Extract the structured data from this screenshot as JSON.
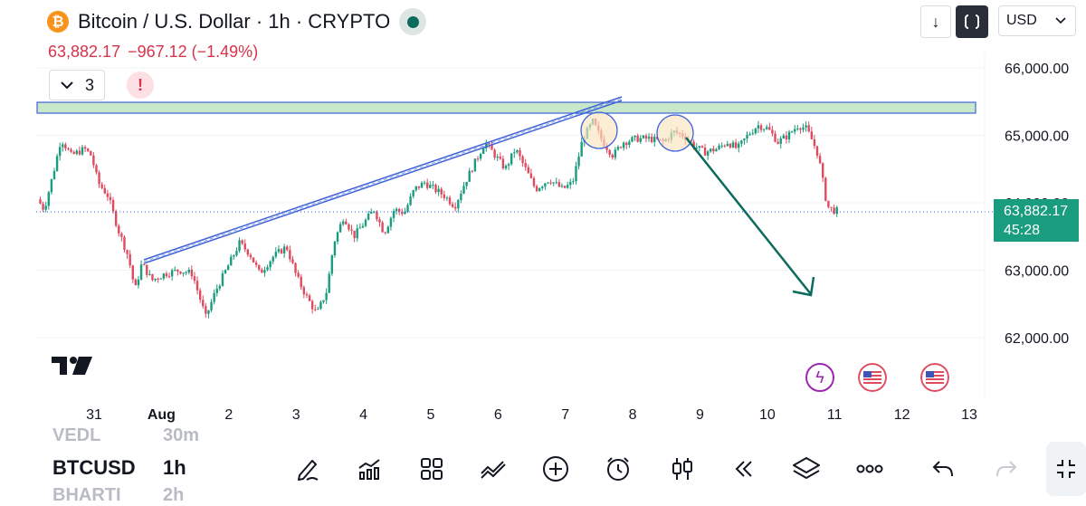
{
  "header": {
    "title": "Bitcoin / U.S. Dollar · 1h · CRYPTO",
    "last_price": "63,882.17",
    "change": "−967.12 (−1.49%)",
    "indicator_count": "3",
    "alert_glyph": "!",
    "currency": "USD",
    "logo_letter": "₿",
    "download_glyph": "↓"
  },
  "price_tag": {
    "price": "63,882.17",
    "countdown": "45:28"
  },
  "toolbar": {
    "symbol_above": "VEDL",
    "interval_above": "30m",
    "symbol": "BTCUSD",
    "interval": "1h",
    "symbol_below": "BHARTI",
    "interval_below": "2h",
    "tools": [
      "pencil-icon",
      "indicators-icon",
      "layout-grid-icon",
      "chart-style-icon",
      "plus-icon",
      "alarm-icon",
      "candles-icon",
      "replay-icon",
      "layers-icon",
      "more-icon",
      "undo-icon",
      "redo-icon"
    ]
  },
  "colors": {
    "up": "#1a9c7e",
    "down": "#e04a5f",
    "resistance_fill": "#c9e7c9",
    "trendline": "#3f63d9",
    "arrow": "#0b6b5d",
    "price_tag_bg": "#1a9c7e"
  },
  "chart_data": {
    "type": "candlestick",
    "symbol": "BTCUSD",
    "interval": "1h",
    "y_ticks": [
      {
        "value": 66000,
        "label": "66,000.00"
      },
      {
        "value": 65000,
        "label": "65,000.00"
      },
      {
        "value": 64000,
        "label": "64,000.00"
      },
      {
        "value": 63000,
        "label": "63,000.00"
      },
      {
        "value": 62000,
        "label": "62,000.00"
      }
    ],
    "x_ticks": [
      {
        "day": 31,
        "label": "31"
      },
      {
        "day": 32,
        "label": "Aug"
      },
      {
        "day": 33,
        "label": "2"
      },
      {
        "day": 34,
        "label": "3"
      },
      {
        "day": 35,
        "label": "4"
      },
      {
        "day": 36,
        "label": "5"
      },
      {
        "day": 37,
        "label": "6"
      },
      {
        "day": 38,
        "label": "7"
      },
      {
        "day": 39,
        "label": "8"
      },
      {
        "day": 40,
        "label": "9"
      },
      {
        "day": 41,
        "label": "10"
      },
      {
        "day": 42,
        "label": "11"
      },
      {
        "day": 43,
        "label": "12"
      },
      {
        "day": 44,
        "label": "13"
      }
    ],
    "ylim": [
      61600,
      66200
    ],
    "xlim": [
      30.2,
      44.1
    ],
    "last_price": 63882.17,
    "price_path": [
      [
        30.2,
        64050
      ],
      [
        30.3,
        63900
      ],
      [
        30.45,
        64500
      ],
      [
        30.55,
        64950
      ],
      [
        30.7,
        64700
      ],
      [
        30.9,
        64800
      ],
      [
        31.0,
        64700
      ],
      [
        31.1,
        64300
      ],
      [
        31.25,
        64100
      ],
      [
        31.4,
        63600
      ],
      [
        31.55,
        63200
      ],
      [
        31.65,
        62700
      ],
      [
        31.75,
        63100
      ],
      [
        31.9,
        62850
      ],
      [
        32.1,
        62950
      ],
      [
        32.3,
        63000
      ],
      [
        32.5,
        62950
      ],
      [
        32.7,
        62300
      ],
      [
        32.85,
        62700
      ],
      [
        33.0,
        63000
      ],
      [
        33.2,
        63400
      ],
      [
        33.35,
        63250
      ],
      [
        33.5,
        62950
      ],
      [
        33.7,
        63200
      ],
      [
        33.9,
        63350
      ],
      [
        34.05,
        62900
      ],
      [
        34.2,
        62600
      ],
      [
        34.35,
        62350
      ],
      [
        34.5,
        62700
      ],
      [
        34.6,
        63400
      ],
      [
        34.75,
        63800
      ],
      [
        34.9,
        63500
      ],
      [
        35.05,
        63700
      ],
      [
        35.2,
        63900
      ],
      [
        35.35,
        63550
      ],
      [
        35.5,
        63900
      ],
      [
        35.65,
        63850
      ],
      [
        35.8,
        64200
      ],
      [
        35.95,
        64300
      ],
      [
        36.1,
        64200
      ],
      [
        36.25,
        64100
      ],
      [
        36.4,
        63950
      ],
      [
        36.55,
        64300
      ],
      [
        36.7,
        64600
      ],
      [
        36.85,
        64900
      ],
      [
        37.0,
        64700
      ],
      [
        37.15,
        64500
      ],
      [
        37.3,
        64800
      ],
      [
        37.45,
        64500
      ],
      [
        37.6,
        64200
      ],
      [
        37.8,
        64350
      ],
      [
        38.0,
        64200
      ],
      [
        38.15,
        64300
      ],
      [
        38.3,
        64950
      ],
      [
        38.45,
        65200
      ],
      [
        38.6,
        64900
      ],
      [
        38.75,
        64700
      ],
      [
        38.9,
        64900
      ],
      [
        39.1,
        64950
      ],
      [
        39.3,
        64950
      ],
      [
        39.5,
        64900
      ],
      [
        39.65,
        65050
      ],
      [
        39.8,
        65000
      ],
      [
        39.95,
        64850
      ],
      [
        40.1,
        64750
      ],
      [
        40.3,
        64800
      ],
      [
        40.45,
        64900
      ],
      [
        40.6,
        64800
      ],
      [
        40.75,
        65000
      ],
      [
        40.9,
        65150
      ],
      [
        41.05,
        65100
      ],
      [
        41.2,
        64900
      ],
      [
        41.35,
        65000
      ],
      [
        41.5,
        65150
      ],
      [
        41.62,
        65100
      ],
      [
        41.72,
        64900
      ],
      [
        41.8,
        64700
      ],
      [
        41.87,
        64300
      ],
      [
        41.93,
        63950
      ],
      [
        42.0,
        63900
      ],
      [
        42.05,
        63880
      ]
    ],
    "resistance_zone": {
      "low": 65330,
      "high": 65500
    },
    "annotations": [
      "resistance zone",
      "rising trendline",
      "double top circles",
      "down arrow projection"
    ]
  }
}
